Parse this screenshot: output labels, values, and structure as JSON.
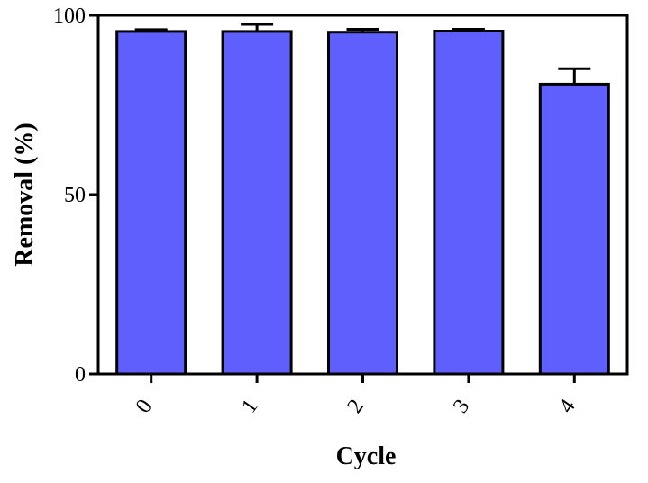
{
  "chart_data": {
    "type": "bar",
    "categories": [
      "0",
      "1",
      "2",
      "3",
      "4"
    ],
    "values": [
      95.5,
      95.5,
      95.3,
      95.6,
      80.8
    ],
    "errors": [
      0.5,
      2.0,
      0.8,
      0.5,
      4.3
    ],
    "xlabel": "Cycle",
    "ylabel": "Removal (%)",
    "ylim": [
      0,
      100
    ],
    "yticks": [
      0,
      50,
      100
    ],
    "grid": false,
    "legend": "none",
    "bar_color": "#5f5ffe",
    "edge_color": "#000000"
  }
}
